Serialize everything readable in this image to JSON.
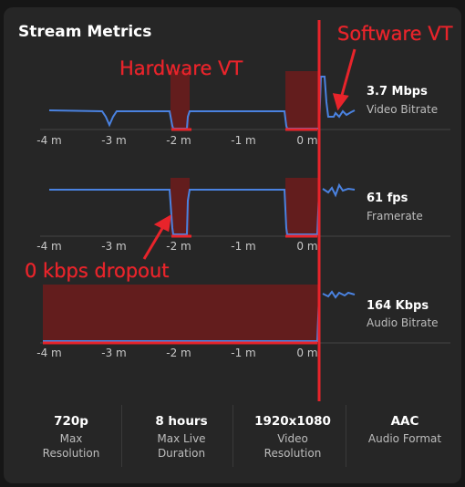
{
  "title": "Stream Metrics",
  "colors": {
    "panel": "#262626",
    "line": "#4a82e0",
    "highlight": "#8b1a1a",
    "annotation": "#e8242b"
  },
  "tick_labels": [
    "-4 m",
    "-3 m",
    "-2 m",
    "-1 m",
    "0 m"
  ],
  "charts": [
    {
      "value": "3.7 Mbps",
      "label": "Video Bitrate"
    },
    {
      "value": "61 fps",
      "label": "Framerate"
    },
    {
      "value": "164 Kbps",
      "label": "Audio Bitrate"
    }
  ],
  "stats": [
    {
      "value": "720p",
      "label_lines": [
        "Max",
        "Resolution"
      ]
    },
    {
      "value": "8 hours",
      "label_lines": [
        "Max Live",
        "Duration"
      ]
    },
    {
      "value": "1920x1080",
      "label_lines": [
        "Video",
        "Resolution"
      ]
    },
    {
      "value": "AAC",
      "label_lines": [
        "Audio Format"
      ]
    }
  ],
  "annotations": {
    "hardware": "Hardware VT",
    "software": "Software VT",
    "dropout": "0 kbps dropout"
  }
}
